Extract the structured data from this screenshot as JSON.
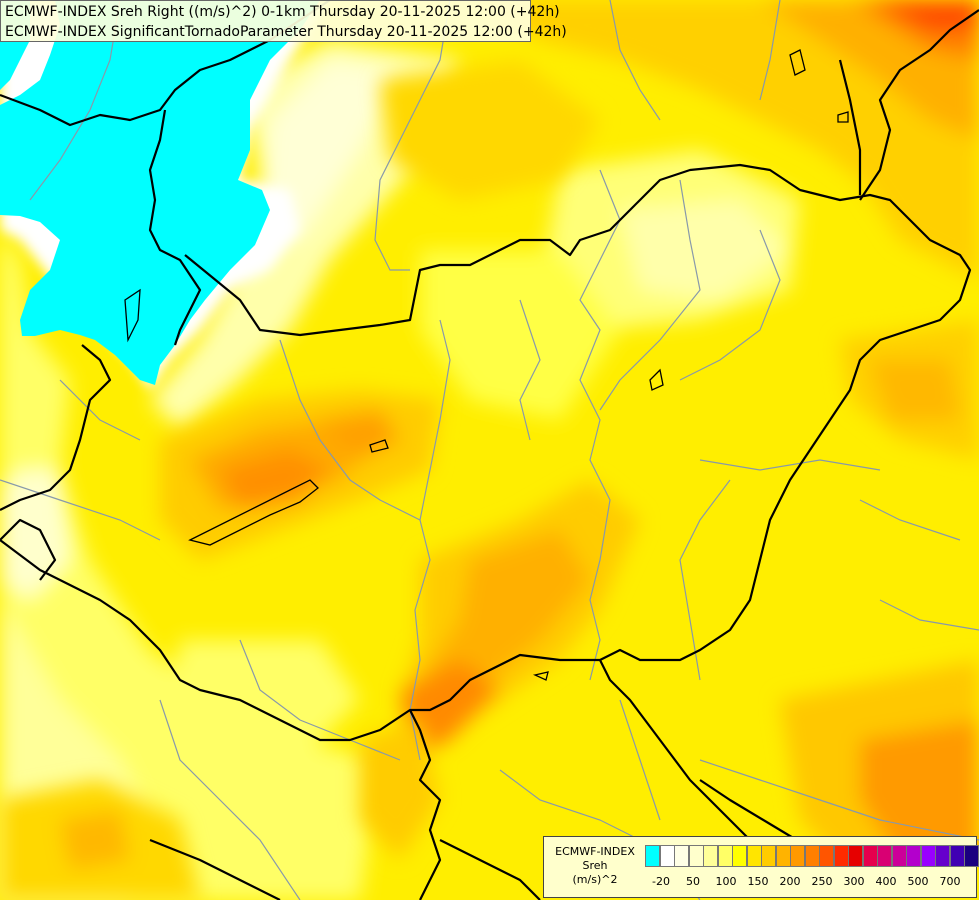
{
  "header": {
    "line1": "ECMWF-INDEX Sreh Right ((m/s)^2) 0-1km Thursday 20-11-2025 12:00 (+42h)",
    "line2": "ECMWF-INDEX SignificantTornadoParameter Thursday 20-11-2025 12:00 (+42h)"
  },
  "legend": {
    "line1": "ECMWF-INDEX",
    "line2": "Sreh",
    "line3": "(m/s)^2",
    "colors": [
      "#00ffff",
      "#ffffff",
      "#ffffe6",
      "#ffffcc",
      "#ffff99",
      "#ffff66",
      "#ffff00",
      "#ffe500",
      "#ffcc00",
      "#ffb300",
      "#ff9900",
      "#ff7f00",
      "#ff5500",
      "#ff2b00",
      "#e60000",
      "#e6004d",
      "#d90073",
      "#cc0099",
      "#b300cc",
      "#9900ff",
      "#6600cc",
      "#4000b3",
      "#1a0080"
    ],
    "ticks": [
      "-20",
      "50",
      "100",
      "150",
      "200",
      "250",
      "300",
      "400",
      "500",
      "700"
    ]
  },
  "colors": {
    "cyan_region": "#00ffff",
    "border_color": "#000000",
    "river_color": "#8899aa"
  }
}
